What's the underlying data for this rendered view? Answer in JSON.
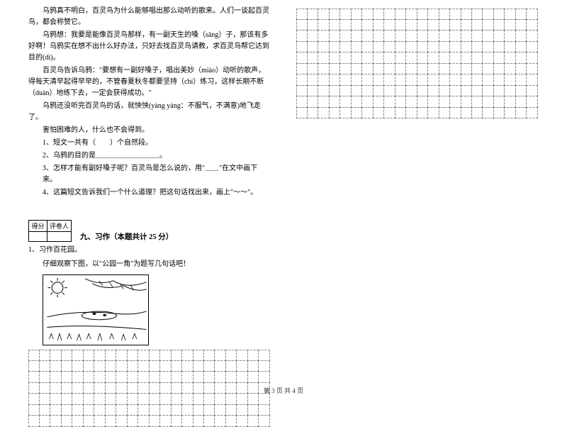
{
  "passage": {
    "p1": "乌鸦真不明白，百灵鸟为什么能够唱出那么动听的歌来。人们一谈起百灵鸟，都会称赞它。",
    "p2": "乌鸦想：我要是能像百灵鸟那样，有一副天生的嗓（sǎng）子，那该有多好啊！乌鸦实在想不出什么好办法，只好去找百灵鸟请教，求百灵鸟帮它达到目的(dì)。",
    "p3": "百灵鸟告诉乌鸦：\"要想有一副好嗓子，唱出美妙（miào）动听的歌声，得每天清早起得早早的，不管春夏秋冬都要坚持（chí）练习，这样长期不断（duàn）地练下去，一定会获得成功。\"",
    "p4": "乌鸦还没听完百灵鸟的话，就怏怏(yàng yàng：不服气，不满意)地飞走了。",
    "p5": "害怕困难的人，什么也不会得到。"
  },
  "questions": {
    "q1": "1、短文一共有（　　）个自然段。",
    "q2": "2、乌鸦的目的是＿＿＿＿＿＿＿＿＿。",
    "q3": "3、怎样才能有副好嗓子呢？百灵鸟是怎么说的，用\"＿＿\"在文中画下来。",
    "q4": "4、这篇短文告诉我们一个什么道理？把这句话找出来，画上\"～～\"。"
  },
  "scorebox": {
    "h1": "得分",
    "h2": "评卷人"
  },
  "section": {
    "title": "九、习作（本题共计 25 分）"
  },
  "composition": {
    "line1": "1、习作百花园。",
    "line2": "仔细观察下图，以\"公园一角\"为题写几句话吧！"
  },
  "gridLeft": {
    "rows": 7,
    "cols": 22
  },
  "gridRight": {
    "rows": 10,
    "cols": 22
  },
  "footer": "第 3 页 共 4 页"
}
